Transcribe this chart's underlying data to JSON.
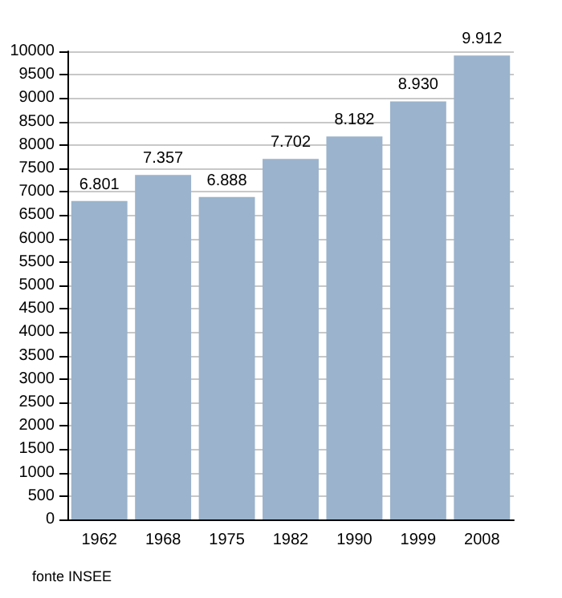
{
  "chart_data": {
    "type": "bar",
    "categories": [
      "1962",
      "1968",
      "1975",
      "1982",
      "1990",
      "1999",
      "2008"
    ],
    "values": [
      6801,
      7357,
      6888,
      7702,
      8182,
      8930,
      9912
    ],
    "value_labels": [
      "6.801",
      "7.357",
      "6.888",
      "7.702",
      "8.182",
      "8.930",
      "9.912"
    ],
    "color": "#9bb3cc",
    "ylim": [
      0,
      10000
    ],
    "yticks": [
      0,
      500,
      1000,
      1500,
      2000,
      2500,
      3000,
      3500,
      4000,
      4500,
      5000,
      5500,
      6000,
      6500,
      7000,
      7500,
      8000,
      8500,
      9000,
      9500,
      10000
    ],
    "grid": "y",
    "annotations": [
      "fonte INSEE"
    ]
  }
}
